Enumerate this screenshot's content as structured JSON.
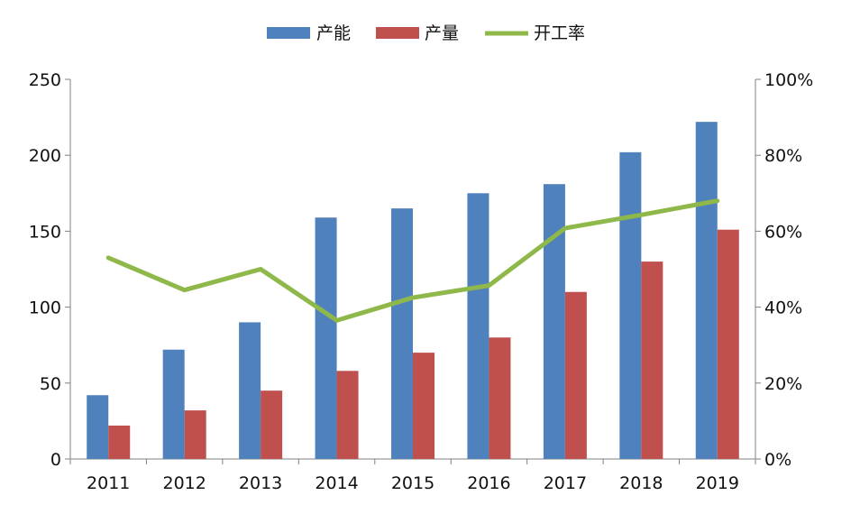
{
  "chart_data": {
    "type": "bar",
    "categories": [
      "2011",
      "2012",
      "2013",
      "2014",
      "2015",
      "2016",
      "2017",
      "2018",
      "2019"
    ],
    "series": [
      {
        "name": "产能",
        "type": "bar",
        "axis": "left",
        "color": "#4f81bd",
        "values": [
          42,
          72,
          90,
          159,
          165,
          175,
          181,
          202,
          222
        ]
      },
      {
        "name": "产量",
        "type": "bar",
        "axis": "left",
        "color": "#c0504d",
        "values": [
          22,
          32,
          45,
          58,
          70,
          80,
          110,
          130,
          151
        ]
      },
      {
        "name": "开工率",
        "type": "line",
        "axis": "right",
        "color": "#8fb84a",
        "values": [
          0.53,
          0.445,
          0.5,
          0.365,
          0.425,
          0.457,
          0.608,
          0.643,
          0.68
        ]
      }
    ],
    "y_left": {
      "min": 0,
      "max": 250,
      "ticks": [
        "0",
        "50",
        "100",
        "150",
        "200",
        "250"
      ]
    },
    "y_right": {
      "min": 0,
      "max": 1,
      "ticks": [
        "0%",
        "20%",
        "40%",
        "60%",
        "80%",
        "100%"
      ]
    },
    "legend_position": "top-center",
    "grid": false
  }
}
